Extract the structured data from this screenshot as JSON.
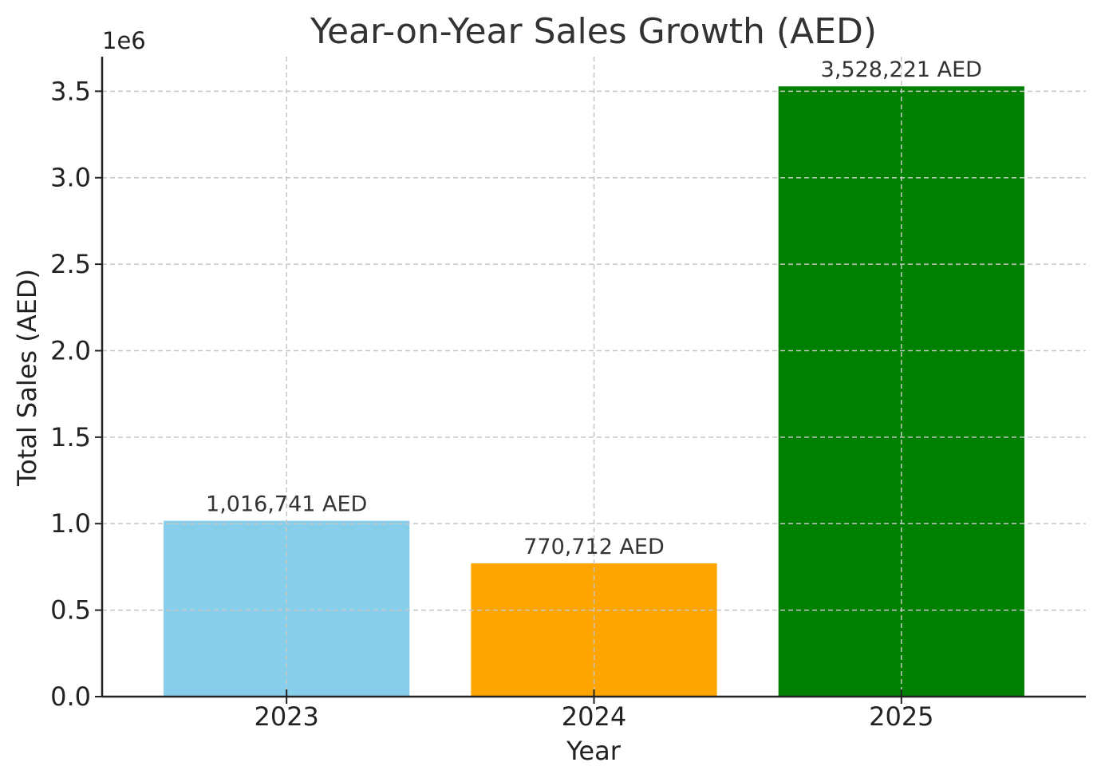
{
  "chart_data": {
    "type": "bar",
    "title": "Year-on-Year Sales Growth (AED)",
    "xlabel": "Year",
    "ylabel": "Total Sales (AED)",
    "y_offset_label": "1e6",
    "categories": [
      "2023",
      "2024",
      "2025"
    ],
    "values": [
      1016741,
      770712,
      3528221
    ],
    "data_labels": [
      "1,016,741 AED",
      "770,712 AED",
      "3,528,221 AED"
    ],
    "colors": [
      "#87ceeb",
      "#ffa500",
      "#008000"
    ],
    "ylim": [
      0,
      3700000
    ],
    "y_ticks": [
      0,
      500000,
      1000000,
      1500000,
      2000000,
      2500000,
      3000000,
      3500000
    ],
    "y_tick_labels": [
      "0.0",
      "0.5",
      "1.0",
      "1.5",
      "2.0",
      "2.5",
      "3.0",
      "3.5"
    ],
    "grid": true,
    "legend": "none"
  }
}
